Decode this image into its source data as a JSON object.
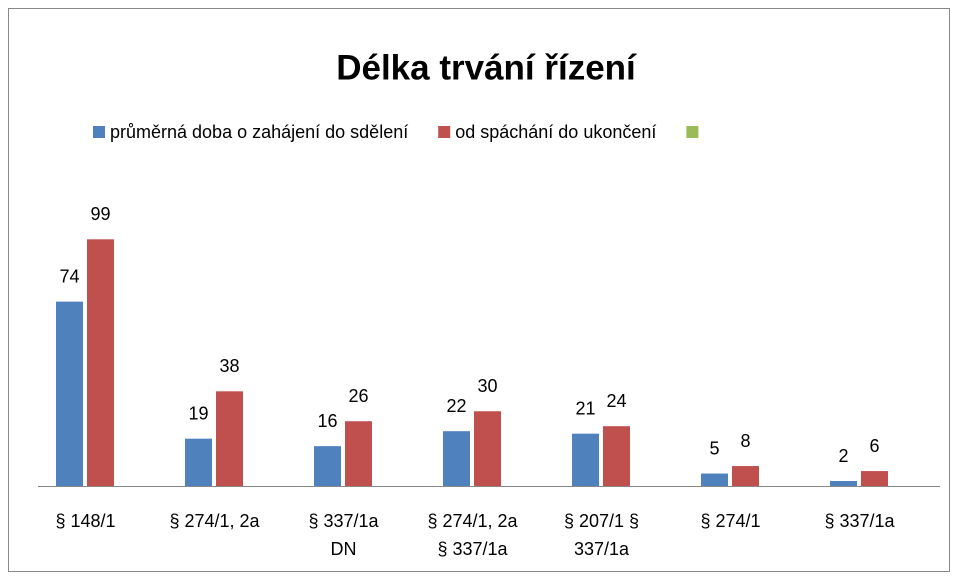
{
  "chart_data": {
    "type": "bar",
    "title": "Délka trvání řízení",
    "categories": [
      "§ 148/1",
      "§ 274/1, 2a",
      "§ 337/1a\nDN",
      "§ 274/1, 2a\n§ 337/1a",
      "§ 207/1 §\n337/1a",
      "§ 274/1",
      "§ 337/1a"
    ],
    "series": [
      {
        "name": "průměrná doba o zahájení do sdělení",
        "color": "#4f81bd",
        "values": [
          74,
          19,
          16,
          22,
          21,
          5,
          2
        ]
      },
      {
        "name": "od spáchání do ukončení",
        "color": "#c0504d",
        "values": [
          99,
          38,
          26,
          30,
          24,
          8,
          6
        ]
      },
      {
        "color": "#9bbb59",
        "values": [
          null,
          null,
          null,
          null,
          null,
          null,
          null
        ]
      }
    ],
    "ylim": [
      0,
      120
    ],
    "legend": "top"
  }
}
